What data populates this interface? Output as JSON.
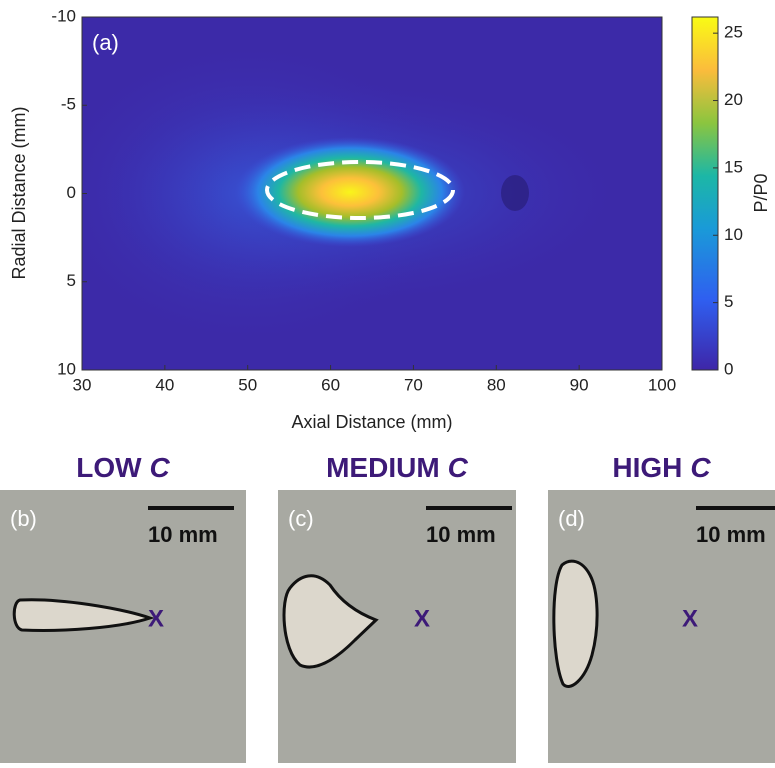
{
  "chart_data": {
    "type": "heatmap",
    "panel_label": "(a)",
    "xlabel": "Axial Distance (mm)",
    "ylabel": "Radial Distance (mm)",
    "xlim": [
      30,
      100
    ],
    "xticks": [
      30,
      40,
      50,
      60,
      70,
      80,
      90,
      100
    ],
    "ylim": [
      10,
      -10
    ],
    "yticks": [
      -10,
      -5,
      0,
      5,
      10
    ],
    "colorbar": {
      "label": "P/P0",
      "lim": [
        0,
        26.2
      ],
      "ticks": [
        0,
        5,
        10,
        15,
        20,
        25
      ]
    }
  },
  "panels": [
    {
      "label": "(b)",
      "title": "LOW",
      "variable": "C",
      "scale_bar": "10 mm",
      "marker": "X"
    },
    {
      "label": "(c)",
      "title": "MEDIUM",
      "variable": "C",
      "scale_bar": "10 mm",
      "marker": "X"
    },
    {
      "label": "(d)",
      "title": "HIGH",
      "variable": "C",
      "scale_bar": "10 mm",
      "marker": "X"
    }
  ]
}
